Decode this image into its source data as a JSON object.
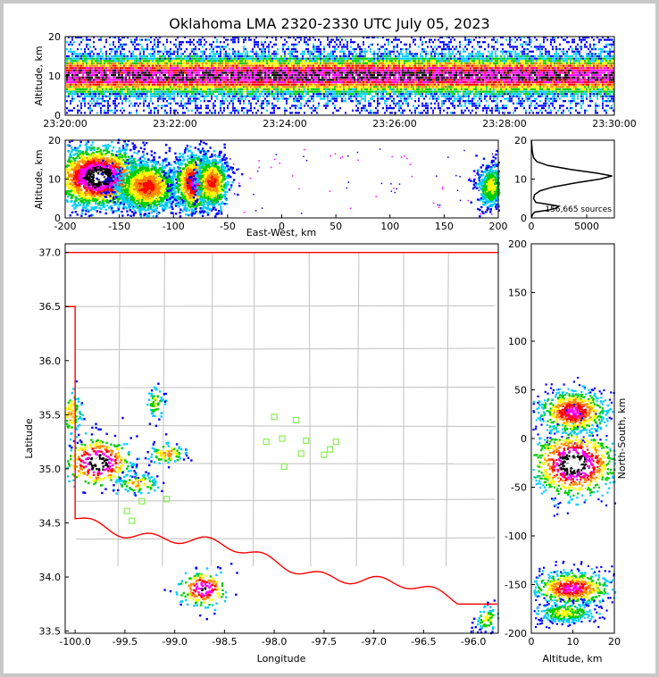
{
  "chart_data": {
    "title": "Oklahoma LMA 2320-2330 UTC July 05, 2023",
    "type": "heatmap",
    "colors": {
      "density": [
        "#0000ff",
        "#00ccff",
        "#00cc00",
        "#ffff00",
        "#ff8800",
        "#ff0000",
        "#ff00ff",
        "#000000",
        "#ffffff"
      ],
      "state_boundary": "#ff0000",
      "county_lines": "#c0c0c0",
      "stations": "#88ee55",
      "profile_line": "#000000"
    },
    "time_panel": {
      "ylabel": "Altitude, km",
      "ylim": [
        0,
        20
      ],
      "yticks": [
        "0",
        "10",
        "20"
      ],
      "xticks": [
        "23:20:00",
        "23:22:00",
        "23:24:00",
        "23:26:00",
        "23:28:00",
        "23:30:00"
      ],
      "core_altitude_km": 10
    },
    "ew_panel": {
      "xlabel": "East-West, km",
      "ylabel": "Altitude, km",
      "xlim": [
        -200,
        200
      ],
      "ylim": [
        0,
        20
      ],
      "xticks": [
        "-200",
        "-150",
        "-100",
        "-50",
        "0",
        "50",
        "100",
        "150",
        "200"
      ],
      "yticks": [
        "0",
        "10",
        "20"
      ],
      "clusters": [
        {
          "x": -170,
          "z": 10.5,
          "dx": 22,
          "dz": 4,
          "peak": 8
        },
        {
          "x": -125,
          "z": 8,
          "dx": 15,
          "dz": 3.5,
          "peak": 5
        },
        {
          "x": -82,
          "z": 9,
          "dx": 10,
          "dz": 4,
          "peak": 6
        },
        {
          "x": -65,
          "z": 9,
          "dx": 8,
          "dz": 3.5,
          "peak": 5
        },
        {
          "x": 193,
          "z": 8,
          "dx": 7,
          "dz": 3,
          "peak": 3
        }
      ]
    },
    "hist_panel": {
      "xlim": [
        0,
        7500
      ],
      "ylim": [
        0,
        20
      ],
      "xticks": [
        "0",
        "5000"
      ],
      "yticks": [
        "0",
        "10",
        "20"
      ],
      "sources_text": "156,665 sources",
      "profile": [
        [
          0,
          0
        ],
        [
          0.8,
          100
        ],
        [
          1.5,
          300
        ],
        [
          2,
          1500
        ],
        [
          2.5,
          2200
        ],
        [
          3,
          2500
        ],
        [
          3.5,
          1500
        ],
        [
          4,
          400
        ],
        [
          5,
          200
        ],
        [
          6,
          300
        ],
        [
          7,
          800
        ],
        [
          8,
          2000
        ],
        [
          9,
          4000
        ],
        [
          10,
          6200
        ],
        [
          10.8,
          7300
        ],
        [
          11.5,
          6000
        ],
        [
          12.5,
          3500
        ],
        [
          13.5,
          1500
        ],
        [
          14.5,
          500
        ],
        [
          15.5,
          200
        ],
        [
          17,
          100
        ],
        [
          20,
          0
        ]
      ]
    },
    "map_panel": {
      "xlabel": "Longitude",
      "ylabel": "Latitude",
      "xlim": [
        -100.1,
        -95.75
      ],
      "ylim": [
        33.48,
        37.08
      ],
      "xticks": [
        "-100.0",
        "-99.5",
        "-99.0",
        "-98.5",
        "-98.0",
        "-97.5",
        "-97.0",
        "-96.5",
        "-96.0"
      ],
      "yticks": [
        "33.5",
        "34.0",
        "34.5",
        "35.0",
        "35.5",
        "36.0",
        "36.5",
        "37.0"
      ],
      "stations": [
        [
          -98.0,
          35.48
        ],
        [
          -97.78,
          35.45
        ],
        [
          -98.08,
          35.25
        ],
        [
          -97.92,
          35.28
        ],
        [
          -97.68,
          35.26
        ],
        [
          -97.38,
          35.25
        ],
        [
          -97.44,
          35.18
        ],
        [
          -97.73,
          35.14
        ],
        [
          -97.5,
          35.13
        ],
        [
          -97.9,
          35.02
        ],
        [
          -99.33,
          34.7
        ],
        [
          -99.08,
          34.72
        ],
        [
          -99.48,
          34.61
        ],
        [
          -99.43,
          34.52
        ]
      ],
      "clusters": [
        {
          "x": -99.78,
          "y": 35.07,
          "dx": 0.18,
          "dy": 0.12,
          "peak": 8
        },
        {
          "x": -99.37,
          "y": 34.87,
          "dx": 0.12,
          "dy": 0.05,
          "peak": 4
        },
        {
          "x": -99.08,
          "y": 35.15,
          "dx": 0.11,
          "dy": 0.05,
          "peak": 4
        },
        {
          "x": -100.05,
          "y": 35.52,
          "dx": 0.06,
          "dy": 0.12,
          "peak": 4
        },
        {
          "x": -99.2,
          "y": 35.62,
          "dx": 0.05,
          "dy": 0.08,
          "peak": 3
        },
        {
          "x": -98.72,
          "y": 33.9,
          "dx": 0.13,
          "dy": 0.09,
          "peak": 7
        },
        {
          "x": -95.87,
          "y": 33.62,
          "dx": 0.07,
          "dy": 0.07,
          "peak": 3
        }
      ]
    },
    "ns_panel": {
      "xlabel": "Altitude, km",
      "ylabel": "North-South, km",
      "xlim": [
        0,
        20
      ],
      "ylim": [
        -200,
        200
      ],
      "xticks": [
        "0",
        "10",
        "20"
      ],
      "yticks": [
        "-200",
        "-150",
        "-100",
        "-50",
        "0",
        "50",
        "100",
        "150",
        "200"
      ],
      "clusters": [
        {
          "z": 10,
          "y": 28,
          "dz": 4.5,
          "dy": 12,
          "peak": 6
        },
        {
          "z": 10,
          "y": -25,
          "dz": 5.5,
          "dy": 18,
          "peak": 8
        },
        {
          "z": 9.5,
          "y": -153,
          "dz": 5,
          "dy": 9,
          "peak": 6
        },
        {
          "z": 8,
          "y": -178,
          "dz": 4,
          "dy": 6,
          "peak": 3
        }
      ]
    }
  }
}
